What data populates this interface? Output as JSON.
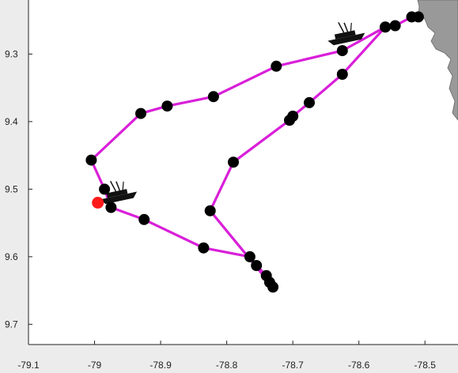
{
  "chart_data": {
    "type": "scatter",
    "title": "",
    "xlabel": "",
    "ylabel": "",
    "xlim": [
      -79.1,
      -78.45
    ],
    "ylim": [
      9.73,
      9.22
    ],
    "y_reversed": true,
    "x_ticks": [
      -79.1,
      -79.0,
      -78.9,
      -78.8,
      -78.7,
      -78.6,
      -78.5
    ],
    "x_tick_labels": [
      "-79.1",
      "-79",
      "-78.9",
      "-78.8",
      "-78.7",
      "-78.6",
      "-78.5"
    ],
    "y_ticks": [
      9.3,
      9.4,
      9.5,
      9.6,
      9.7
    ],
    "y_tick_labels": [
      "9.3",
      "9.4",
      "9.5",
      "9.6",
      "9.7"
    ],
    "grid": false,
    "track_color": "#d91fd9",
    "point_color": "#000000",
    "highlight_color": "#ff1a1a",
    "land_color": "#999999",
    "series": [
      {
        "points": [
          [
            -78.51,
            9.245
          ],
          [
            -78.52,
            9.245
          ],
          [
            -78.545,
            9.258
          ],
          [
            -78.56,
            9.26
          ],
          [
            -78.625,
            9.295
          ],
          [
            -78.725,
            9.318
          ],
          [
            -78.82,
            9.363
          ],
          [
            -78.89,
            9.377
          ],
          [
            -78.93,
            9.388
          ],
          [
            -79.005,
            9.457
          ],
          [
            -78.985,
            9.5
          ],
          [
            -78.975,
            9.527
          ],
          [
            -78.925,
            9.545
          ],
          [
            -78.835,
            9.587
          ],
          [
            -78.765,
            9.6
          ],
          [
            -78.755,
            9.613
          ],
          [
            -78.74,
            9.628
          ],
          [
            -78.735,
            9.638
          ],
          [
            -78.73,
            9.645
          ],
          [
            -78.825,
            9.532
          ],
          [
            -78.79,
            9.46
          ],
          [
            -78.705,
            9.398
          ],
          [
            -78.7,
            9.392
          ],
          [
            -78.675,
            9.372
          ],
          [
            -78.625,
            9.33
          ],
          [
            -78.56,
            9.26
          ]
        ],
        "highlight": [
          [
            -78.995,
            9.52
          ]
        ]
      }
    ],
    "landmarks": [
      {
        "icon": "boat-icon",
        "x": -78.62,
        "y": 9.27
      },
      {
        "icon": "boat-icon",
        "x": -78.965,
        "y": 9.505
      },
      {
        "icon": "land-mass-icon",
        "x": -78.47,
        "y": 9.3
      }
    ]
  }
}
